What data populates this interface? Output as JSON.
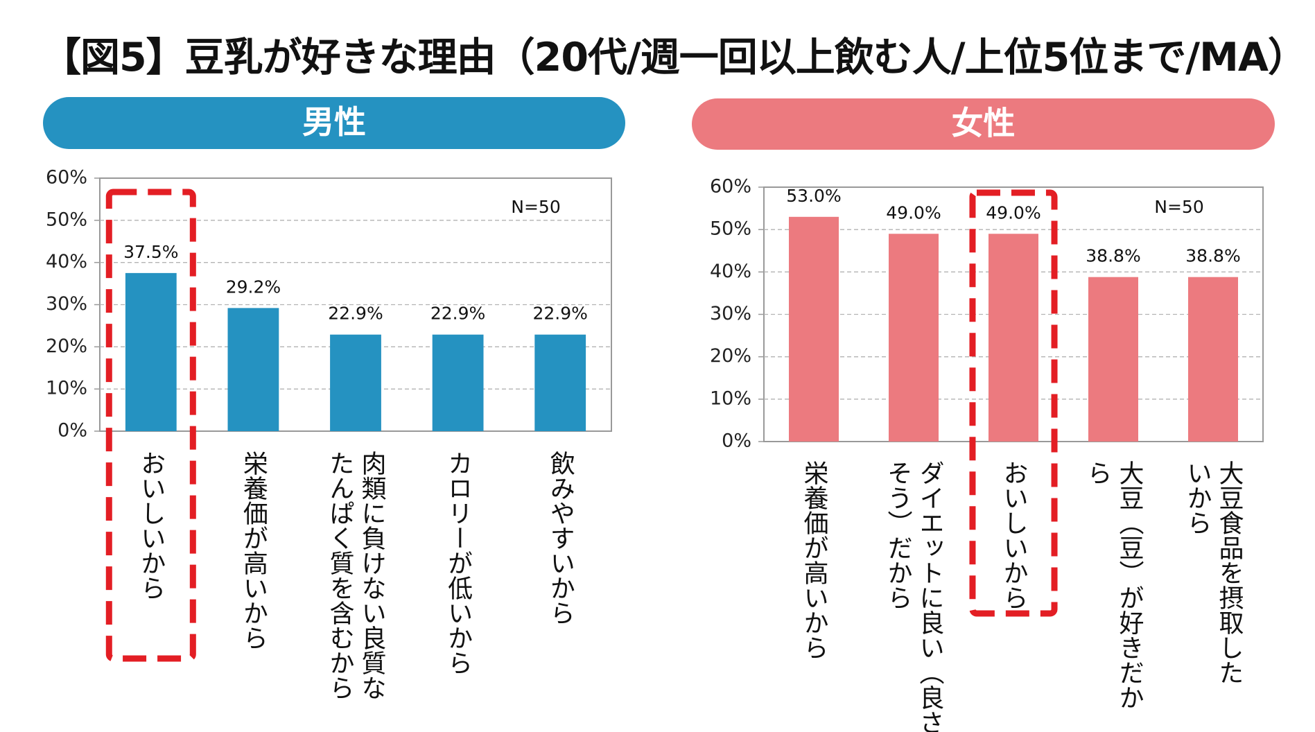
{
  "title": "【図5】豆乳が好きな理由（20代/週一回以上飲む人/上位5位まで/MA）",
  "colors": {
    "male": "#2592c1",
    "female": "#ec7a7f",
    "highlight": "#e31e24",
    "grid": "#b3b3b3",
    "axis": "#999999"
  },
  "chart_data": [
    {
      "type": "bar",
      "panel_label": "男性",
      "color": "#2592c1",
      "categories": [
        "おいしいから",
        "栄養価が高いから",
        "肉類に負けない良質なたんぱく質を含むから",
        "カロリーが低いから",
        "飲みやすいから"
      ],
      "category_lines": [
        [
          "おいしいから"
        ],
        [
          "栄養価が高いから"
        ],
        [
          "肉類に負けない良質な",
          "たんぱく質を含むから"
        ],
        [
          "カロリーが低いから"
        ],
        [
          "飲みやすいから"
        ]
      ],
      "values": [
        37.5,
        29.2,
        22.9,
        22.9,
        22.9
      ],
      "value_labels": [
        "37.5%",
        "29.2%",
        "22.9%",
        "22.9%",
        "22.9%"
      ],
      "y_ticks": [
        0,
        10,
        20,
        30,
        40,
        50,
        60
      ],
      "y_tick_labels": [
        "0%",
        "10%",
        "20%",
        "30%",
        "40%",
        "50%",
        "60%"
      ],
      "ylim": [
        0,
        60
      ],
      "grid": true,
      "n_label": "N=50",
      "highlight_index": 0
    },
    {
      "type": "bar",
      "panel_label": "女性",
      "color": "#ec7a7f",
      "categories": [
        "栄養価が高いから",
        "ダイエットに良い（良さそう）だから",
        "おいしいから",
        "大豆（豆）が好きだから",
        "大豆食品を摂取したいから"
      ],
      "category_lines": [
        [
          "栄養価が高いから"
        ],
        [
          "ダイエットに良い（良さ",
          "そう）だから"
        ],
        [
          "おいしいから"
        ],
        [
          "大豆（豆）が好きだか",
          "ら"
        ],
        [
          "大豆食品を摂取した",
          "いから"
        ]
      ],
      "values": [
        53.0,
        49.0,
        49.0,
        38.8,
        38.8
      ],
      "value_labels": [
        "53.0%",
        "49.0%",
        "49.0%",
        "38.8%",
        "38.8%"
      ],
      "y_ticks": [
        0,
        10,
        20,
        30,
        40,
        50,
        60
      ],
      "y_tick_labels": [
        "0%",
        "10%",
        "20%",
        "30%",
        "40%",
        "50%",
        "60%"
      ],
      "ylim": [
        0,
        60
      ],
      "grid": true,
      "n_label": "N=50",
      "highlight_index": 2
    }
  ]
}
